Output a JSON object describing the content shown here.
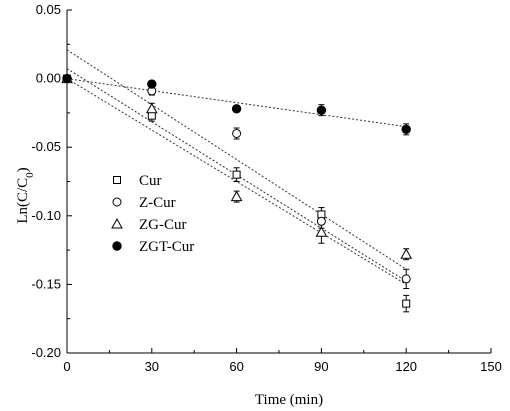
{
  "chart_data": {
    "type": "scatter",
    "title": "",
    "xlabel": "Time  (min)",
    "ylabel_main": "Ln(C/C",
    "ylabel_sub": "0",
    "ylabel_close": ")",
    "xlim": [
      0,
      150
    ],
    "ylim": [
      -0.2,
      0.05
    ],
    "xticks": [
      0,
      30,
      60,
      90,
      120,
      150
    ],
    "yticks": [
      0.05,
      0.0,
      -0.05,
      -0.1,
      -0.15,
      -0.2
    ],
    "xtick_labels": [
      "0",
      "30",
      "60",
      "90",
      "120",
      "150"
    ],
    "ytick_labels": [
      "0.05",
      "0.00",
      "-0.05",
      "-0.10",
      "-0.15",
      "-0.20"
    ],
    "grid": false,
    "legend_position": "left-middle",
    "series": [
      {
        "name": "Cur",
        "marker": "square-open",
        "x": [
          0,
          30,
          60,
          90,
          120
        ],
        "y": [
          0.0,
          -0.027,
          -0.07,
          -0.099,
          -0.164
        ],
        "err": [
          0,
          0.004,
          0.005,
          0.005,
          0.006
        ],
        "fit": {
          "slope": -0.001292,
          "intercept": 0.0073
        }
      },
      {
        "name": "Z-Cur",
        "marker": "circle-open",
        "x": [
          0,
          30,
          60,
          90,
          120
        ],
        "y": [
          0.0,
          -0.009,
          -0.04,
          -0.104,
          -0.146
        ],
        "err": [
          0,
          0.003,
          0.004,
          0.005,
          0.007
        ],
        "fit": {
          "slope": -0.00125,
          "intercept": 0.0
        }
      },
      {
        "name": "ZG-Cur",
        "marker": "triangle-open",
        "x": [
          0,
          30,
          60,
          90,
          120
        ],
        "y": [
          0.0,
          -0.022,
          -0.086,
          -0.112,
          -0.128
        ],
        "err": [
          0,
          0.004,
          0.004,
          0.008,
          0.004
        ],
        "fit": {
          "slope": -0.001333,
          "intercept": 0.021
        }
      },
      {
        "name": "ZGT-Cur",
        "marker": "circle-filled",
        "x": [
          0,
          30,
          60,
          90,
          120
        ],
        "y": [
          0.0,
          -0.004,
          -0.022,
          -0.023,
          -0.037
        ],
        "err": [
          0,
          0.002,
          0.002,
          0.004,
          0.004
        ],
        "fit": {
          "slope": -0.000292,
          "intercept": 0.0
        }
      }
    ]
  }
}
